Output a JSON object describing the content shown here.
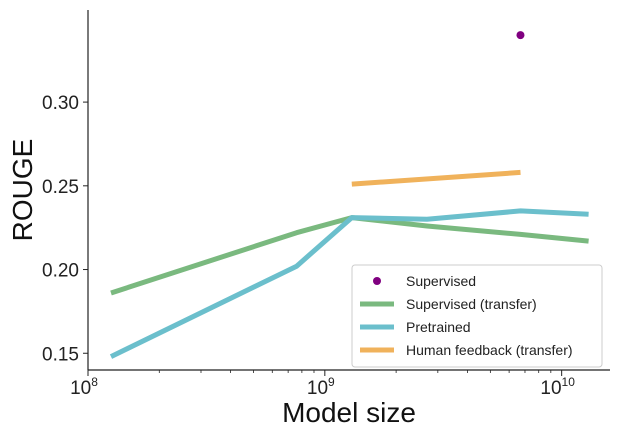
{
  "chart_data": {
    "type": "line",
    "xlabel": "Model size",
    "ylabel": "ROUGE",
    "xscale": "log",
    "xlim": [
      100000000.0,
      16000000000.0
    ],
    "ylim": [
      0.14,
      0.355
    ],
    "x_ticks": [
      {
        "value": 100000000.0,
        "base": "10",
        "exp": "8"
      },
      {
        "value": 1000000000.0,
        "base": "10",
        "exp": "9"
      },
      {
        "value": 10000000000.0,
        "base": "10",
        "exp": "10"
      }
    ],
    "y_ticks": [
      {
        "value": 0.15,
        "label": "0.15"
      },
      {
        "value": 0.2,
        "label": "0.20"
      },
      {
        "value": 0.25,
        "label": "0.25"
      },
      {
        "value": 0.3,
        "label": "0.30"
      }
    ],
    "legend_position": "bottom-right",
    "series": [
      {
        "name": "Supervised",
        "kind": "scatter",
        "color": "#800080",
        "points": [
          {
            "x": 6700000000.0,
            "y": 0.34
          }
        ]
      },
      {
        "name": "Supervised (transfer)",
        "kind": "line",
        "color": "#7ab97f",
        "points": [
          {
            "x": 125000000.0,
            "y": 0.186
          },
          {
            "x": 760000000.0,
            "y": 0.222
          },
          {
            "x": 1300000000.0,
            "y": 0.231
          },
          {
            "x": 2700000000.0,
            "y": 0.226
          },
          {
            "x": 6700000000.0,
            "y": 0.221
          },
          {
            "x": 13000000000.0,
            "y": 0.217
          }
        ]
      },
      {
        "name": "Pretrained",
        "kind": "line",
        "color": "#6bbfcc",
        "points": [
          {
            "x": 125000000.0,
            "y": 0.148
          },
          {
            "x": 760000000.0,
            "y": 0.202
          },
          {
            "x": 1300000000.0,
            "y": 0.231
          },
          {
            "x": 2700000000.0,
            "y": 0.23
          },
          {
            "x": 6700000000.0,
            "y": 0.235
          },
          {
            "x": 13000000000.0,
            "y": 0.233
          }
        ]
      },
      {
        "name": "Human feedback (transfer)",
        "kind": "line",
        "color": "#f0b25b",
        "points": [
          {
            "x": 1300000000.0,
            "y": 0.251
          },
          {
            "x": 6700000000.0,
            "y": 0.258
          }
        ]
      }
    ]
  }
}
